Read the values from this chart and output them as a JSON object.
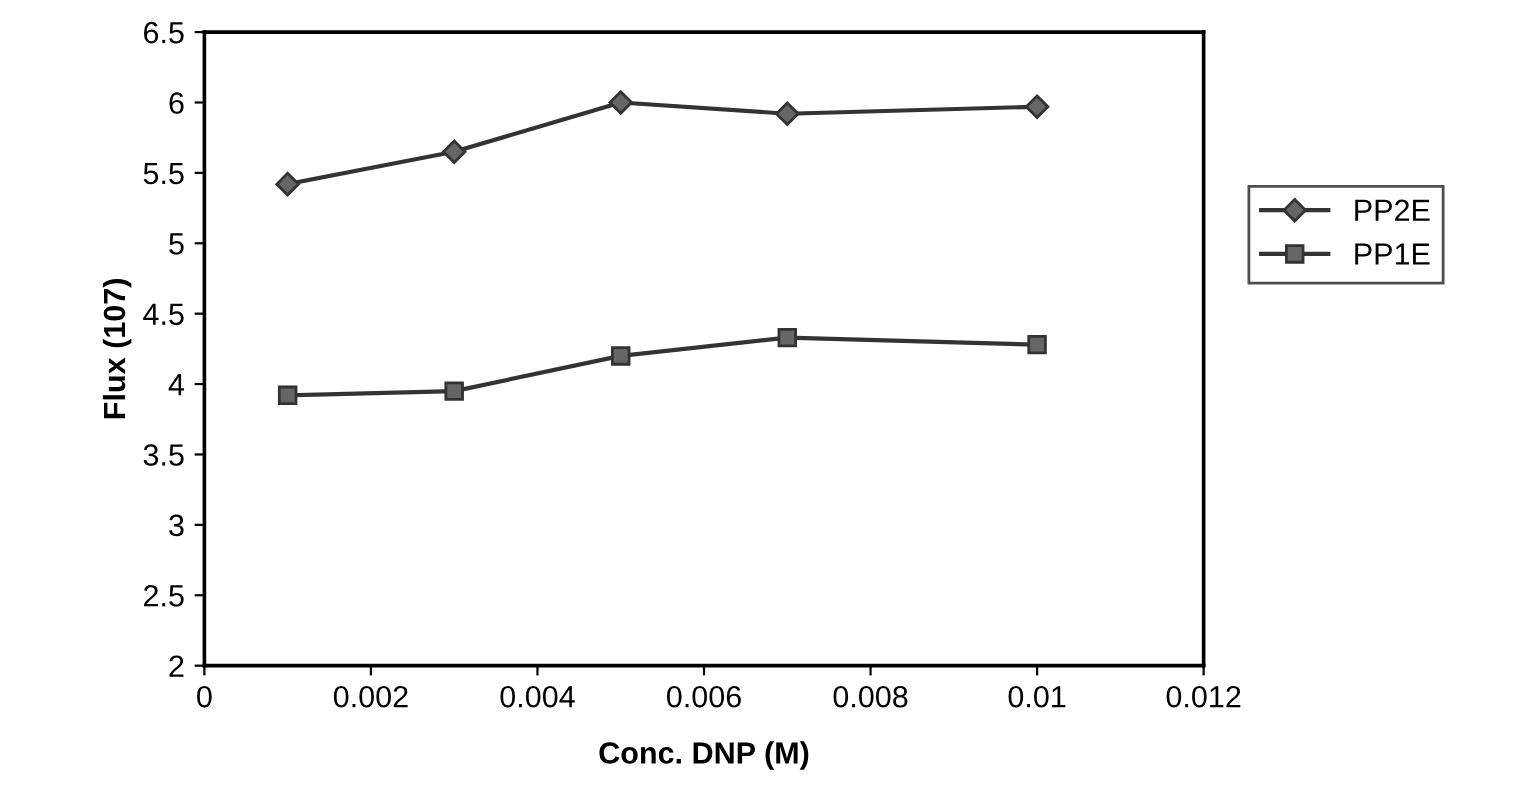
{
  "chart_data": {
    "type": "line",
    "xlabel": "Conc. DNP (M)",
    "ylabel": "Flux (107)",
    "xlim": [
      0,
      0.012
    ],
    "xticks": [
      0,
      0.002,
      0.004,
      0.006,
      0.008,
      0.01,
      0.012
    ],
    "ylim": [
      2,
      6.5
    ],
    "yticks": [
      2,
      2.5,
      3,
      3.5,
      4,
      4.5,
      5,
      5.5,
      6,
      6.5
    ],
    "x": [
      0.001,
      0.003,
      0.005,
      0.007,
      0.01
    ],
    "series": [
      {
        "name": "PP2E",
        "color": "#333333",
        "marker": "diamond",
        "values": [
          5.42,
          5.65,
          6.0,
          5.92,
          5.97
        ]
      },
      {
        "name": "PP1E",
        "color": "#333333",
        "marker": "square",
        "values": [
          3.92,
          3.95,
          4.2,
          4.33,
          4.28
        ]
      }
    ],
    "legend": "right",
    "grid": false,
    "line_style": "solid"
  }
}
